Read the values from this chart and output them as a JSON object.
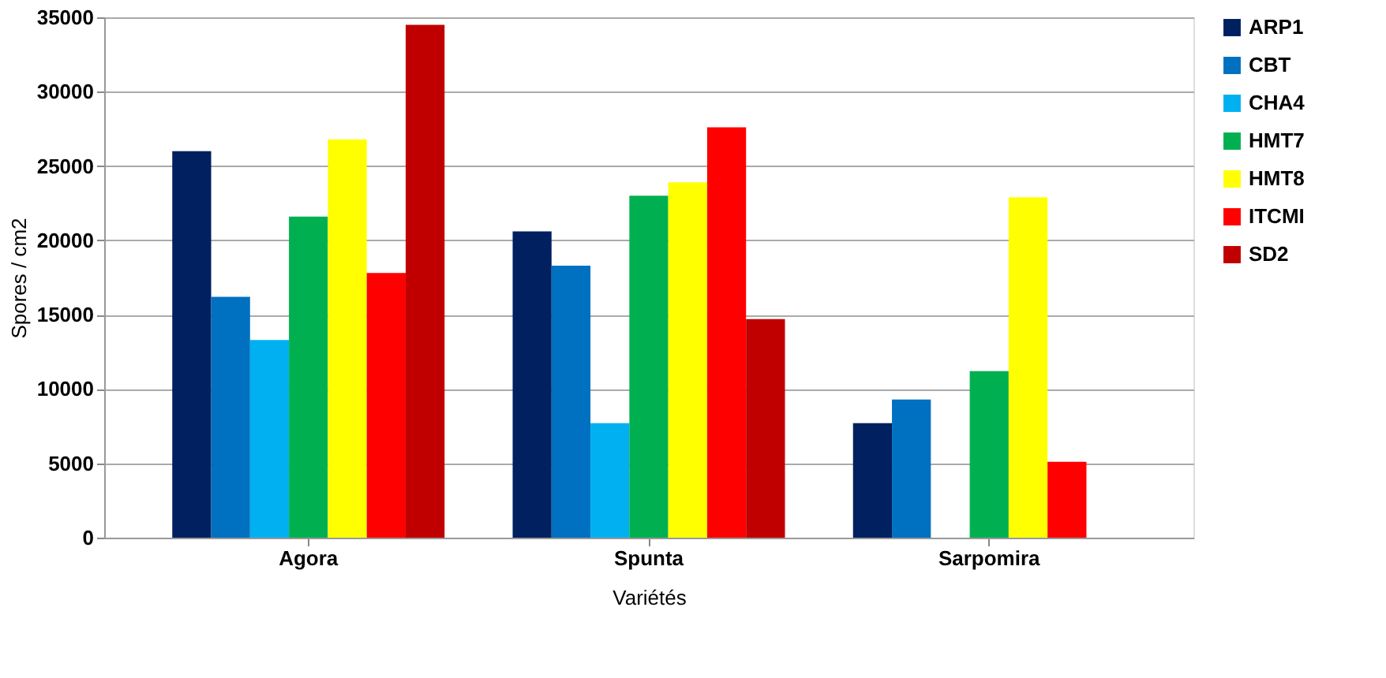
{
  "chart_data": {
    "type": "bar",
    "xlabel": "Variétés",
    "ylabel": "Spores / cm2",
    "categories": [
      "Agora",
      "Spunta",
      "Sarpomira"
    ],
    "series": [
      {
        "name": "ARP1",
        "color": "#002060",
        "values": [
          26000,
          20600,
          7700
        ]
      },
      {
        "name": "CBT",
        "color": "#0070c0",
        "values": [
          16200,
          18300,
          9300
        ]
      },
      {
        "name": "CHA4",
        "color": "#00b0f0",
        "values": [
          13300,
          7700,
          0
        ]
      },
      {
        "name": "HMT7",
        "color": "#00b050",
        "values": [
          21600,
          23000,
          11200
        ]
      },
      {
        "name": "HMT8",
        "color": "#ffff00",
        "values": [
          26800,
          23900,
          22900
        ]
      },
      {
        "name": "ITCMI",
        "color": "#ff0000",
        "values": [
          17800,
          27600,
          5100
        ]
      },
      {
        "name": "SD2",
        "color": "#c00000",
        "values": [
          34500,
          14700,
          0
        ]
      }
    ],
    "ylim": [
      0,
      35000
    ],
    "yticks": [
      0,
      5000,
      10000,
      15000,
      20000,
      25000,
      30000,
      35000
    ],
    "grid": "y",
    "legend": "right"
  }
}
